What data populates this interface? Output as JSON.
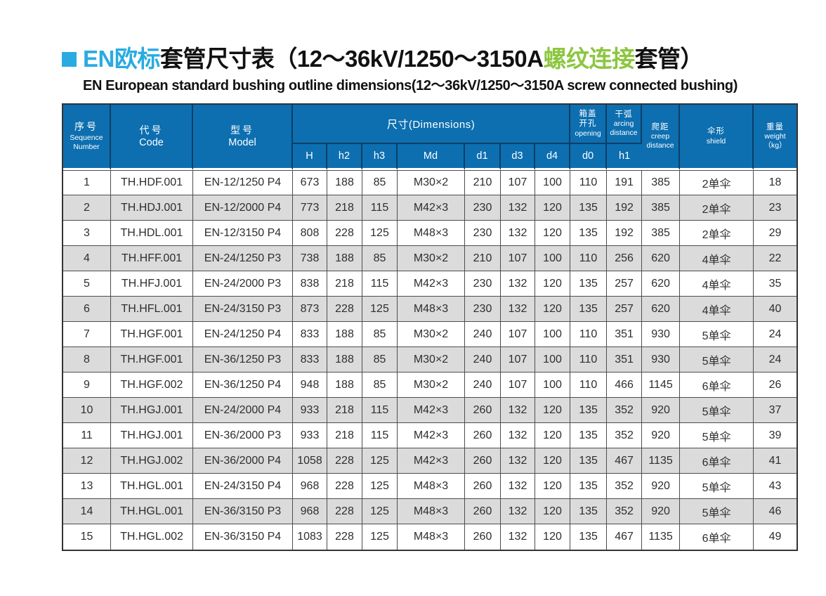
{
  "title": {
    "part1_blue": "EN欧标",
    "part2_black": "套管尺寸表（12～36kV/1250～3150A",
    "part3_green": "螺纹连接",
    "part4_black": "套管）",
    "subtitle": "EN European standard bushing outline dimensions(12～36kV/1250～3150A screw connected bushing)"
  },
  "colors": {
    "title_blue": "#29abe2",
    "title_green": "#8cc63f",
    "header_blue": "#0d6fb0",
    "header_divider": "#0a3f66",
    "row_alt_gray": "#dbdbdb",
    "cell_border": "#4d4d4d"
  },
  "table": {
    "header": {
      "seq_cn": "序号",
      "seq_en1": "Sequence",
      "seq_en2": "Number",
      "code_cn": "代号",
      "code_en": "Code",
      "model_cn": "型号",
      "model_en": "Model",
      "dims": "尺寸(Dimensions)",
      "sub": [
        "H",
        "h2",
        "h3",
        "Md",
        "d1",
        "d3",
        "d4"
      ],
      "opening_cn1": "箱盖",
      "opening_cn2": "开孔",
      "opening_en": "opening",
      "opening_sub": "d0",
      "arcing_cn": "干弧",
      "arcing_en1": "arcing",
      "arcing_en2": "distance",
      "arcing_sub": "h1",
      "creep_cn": "爬距",
      "creep_en1": "creep",
      "creep_en2": "distance",
      "shield_cn": "伞形",
      "shield_en": "shield",
      "weight_cn": "重量",
      "weight_en": "weight",
      "weight_unit": "（kg）"
    },
    "rows": [
      [
        "1",
        "TH.HDF.001",
        "EN-12/1250 P4",
        "673",
        "188",
        "85",
        "M30×2",
        "210",
        "107",
        "100",
        "110",
        "191",
        "385",
        "2单伞",
        "18"
      ],
      [
        "2",
        "TH.HDJ.001",
        "EN-12/2000 P4",
        "773",
        "218",
        "115",
        "M42×3",
        "230",
        "132",
        "120",
        "135",
        "192",
        "385",
        "2单伞",
        "23"
      ],
      [
        "3",
        "TH.HDL.001",
        "EN-12/3150 P4",
        "808",
        "228",
        "125",
        "M48×3",
        "230",
        "132",
        "120",
        "135",
        "192",
        "385",
        "2单伞",
        "29"
      ],
      [
        "4",
        "TH.HFF.001",
        "EN-24/1250 P3",
        "738",
        "188",
        "85",
        "M30×2",
        "210",
        "107",
        "100",
        "110",
        "256",
        "620",
        "4单伞",
        "22"
      ],
      [
        "5",
        "TH.HFJ.001",
        "EN-24/2000 P3",
        "838",
        "218",
        "115",
        "M42×3",
        "230",
        "132",
        "120",
        "135",
        "257",
        "620",
        "4单伞",
        "35"
      ],
      [
        "6",
        "TH.HFL.001",
        "EN-24/3150 P3",
        "873",
        "228",
        "125",
        "M48×3",
        "230",
        "132",
        "120",
        "135",
        "257",
        "620",
        "4单伞",
        "40"
      ],
      [
        "7",
        "TH.HGF.001",
        "EN-24/1250 P4",
        "833",
        "188",
        "85",
        "M30×2",
        "240",
        "107",
        "100",
        "110",
        "351",
        "930",
        "5单伞",
        "24"
      ],
      [
        "8",
        "TH.HGF.001",
        "EN-36/1250 P3",
        "833",
        "188",
        "85",
        "M30×2",
        "240",
        "107",
        "100",
        "110",
        "351",
        "930",
        "5单伞",
        "24"
      ],
      [
        "9",
        "TH.HGF.002",
        "EN-36/1250 P4",
        "948",
        "188",
        "85",
        "M30×2",
        "240",
        "107",
        "100",
        "110",
        "466",
        "1145",
        "6单伞",
        "26"
      ],
      [
        "10",
        "TH.HGJ.001",
        "EN-24/2000 P4",
        "933",
        "218",
        "115",
        "M42×3",
        "260",
        "132",
        "120",
        "135",
        "352",
        "920",
        "5单伞",
        "37"
      ],
      [
        "11",
        "TH.HGJ.001",
        "EN-36/2000 P3",
        "933",
        "218",
        "115",
        "M42×3",
        "260",
        "132",
        "120",
        "135",
        "352",
        "920",
        "5单伞",
        "39"
      ],
      [
        "12",
        "TH.HGJ.002",
        "EN-36/2000 P4",
        "1058",
        "228",
        "125",
        "M42×3",
        "260",
        "132",
        "120",
        "135",
        "467",
        "1135",
        "6单伞",
        "41"
      ],
      [
        "13",
        "TH.HGL.001",
        "EN-24/3150 P4",
        "968",
        "228",
        "125",
        "M48×3",
        "260",
        "132",
        "120",
        "135",
        "352",
        "920",
        "5单伞",
        "43"
      ],
      [
        "14",
        "TH.HGL.001",
        "EN-36/3150 P3",
        "968",
        "228",
        "125",
        "M48×3",
        "260",
        "132",
        "120",
        "135",
        "352",
        "920",
        "5单伞",
        "46"
      ],
      [
        "15",
        "TH.HGL.002",
        "EN-36/3150 P4",
        "1083",
        "228",
        "125",
        "M48×3",
        "260",
        "132",
        "120",
        "135",
        "467",
        "1135",
        "6单伞",
        "49"
      ]
    ]
  }
}
